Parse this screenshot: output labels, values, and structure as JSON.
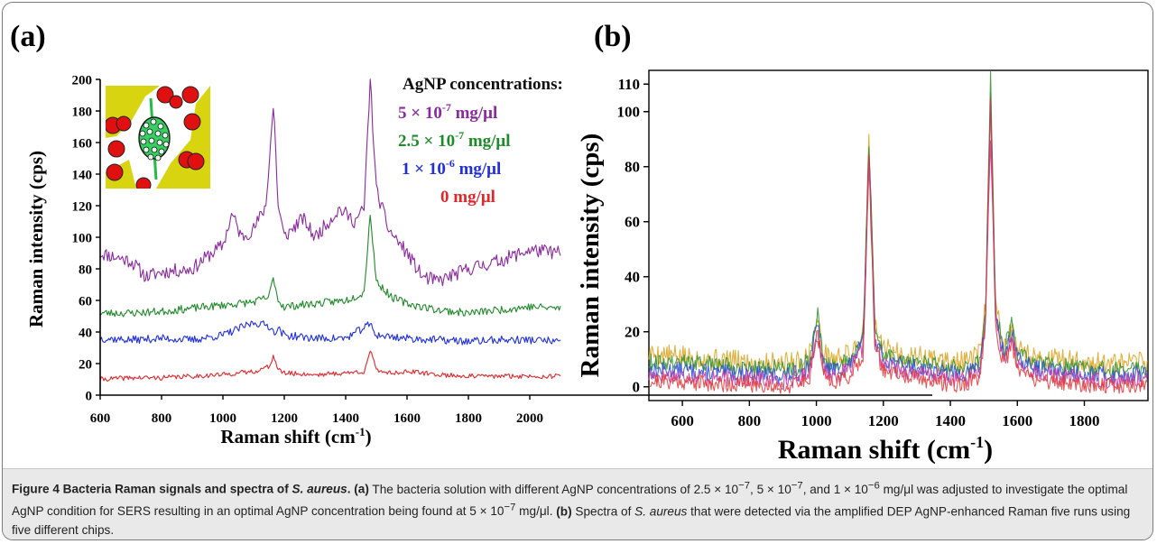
{
  "figure": {
    "panel_a_label": "(a)",
    "panel_b_label": "(b)"
  },
  "caption": {
    "fig_num": "Figure 4",
    "title_pre": "Bacteria Raman signals and spectra of ",
    "title_species": "S. aureus",
    "title_post": ".",
    "a_tag": "(a)",
    "a_text_1": " The bacteria solution with different AgNP concentrations of 2.5 × 10",
    "a_sup_1": "−7",
    "a_text_2": ", 5 × 10",
    "a_sup_2": "−7",
    "a_text_3": ", and 1 × 10",
    "a_sup_3": "−6",
    "a_text_4": " mg/μl was adjusted to investigate the optimal AgNP condition for SERS resulting in an optimal AgNP concentration being found at 5 × 10",
    "a_sup_4": "−7",
    "a_text_5": " mg/μl.",
    "b_tag": "(b)",
    "b_text_1": " Spectra of ",
    "b_species": "S. aureus",
    "b_text_2": " that were detected via the amplified DEP AgNP-enhanced Raman five runs using five different chips."
  },
  "chart_data": [
    {
      "type": "line",
      "panel": "a",
      "xlabel": "Raman shift (cm",
      "xlabel_sup": "-1",
      "xlabel_close": ")",
      "ylabel": "Raman intensity (cps)",
      "xlim": [
        600,
        2100
      ],
      "ylim": [
        0,
        200
      ],
      "xticks": [
        600,
        800,
        1000,
        1200,
        1400,
        1600,
        1800,
        2000
      ],
      "yticks": [
        0,
        20,
        40,
        60,
        80,
        100,
        120,
        140,
        160,
        180,
        200
      ],
      "legend_placement": "top-right",
      "legend_title": "AgNP concentrations:",
      "legend": [
        {
          "base": "5 × 10",
          "exp": "-7",
          "unit": " mg/μl",
          "color": "#8b2a9e"
        },
        {
          "base": "2.5 × 10",
          "exp": "-7",
          "unit": " mg/μl",
          "color": "#1f8a2a"
        },
        {
          "base": "1 × 10",
          "exp": "-6",
          "unit": " mg/μl",
          "color": "#1f2fe0"
        },
        {
          "base": "0",
          "exp": "",
          "unit": " mg/μl",
          "color": "#e2262a"
        }
      ],
      "series": [
        {
          "name": "5 × 10-7 mg/μl",
          "color": "#8b2a9e",
          "noise": 4.5,
          "seed": 11,
          "x": [
            600,
            700,
            750,
            800,
            900,
            950,
            1000,
            1030,
            1060,
            1100,
            1140,
            1165,
            1180,
            1200,
            1260,
            1300,
            1380,
            1430,
            1460,
            1480,
            1500,
            1540,
            1600,
            1650,
            1700,
            1800,
            1900,
            2000,
            2100
          ],
          "y": [
            90,
            85,
            75,
            78,
            80,
            88,
            95,
            115,
            100,
            105,
            120,
            185,
            120,
            100,
            112,
            100,
            118,
            110,
            118,
            200,
            130,
            105,
            90,
            75,
            72,
            80,
            85,
            92,
            90
          ]
        },
        {
          "name": "2.5 × 10-7 mg/μl",
          "color": "#1f8a2a",
          "noise": 2.5,
          "seed": 23,
          "x": [
            600,
            700,
            800,
            900,
            1000,
            1100,
            1150,
            1165,
            1180,
            1200,
            1300,
            1400,
            1460,
            1480,
            1500,
            1550,
            1600,
            1700,
            1800,
            1900,
            2000,
            2100
          ],
          "y": [
            52,
            52,
            53,
            55,
            57,
            59,
            62,
            75,
            60,
            56,
            58,
            60,
            65,
            115,
            72,
            62,
            58,
            54,
            52,
            54,
            56,
            55
          ]
        },
        {
          "name": "1 × 10-6 mg/μl",
          "color": "#1f2fe0",
          "noise": 2.5,
          "seed": 37,
          "x": [
            600,
            700,
            800,
            900,
            1000,
            1050,
            1100,
            1150,
            1165,
            1180,
            1200,
            1300,
            1400,
            1480,
            1500,
            1600,
            1700,
            1800,
            1900,
            2000,
            2100
          ],
          "y": [
            36,
            35,
            36,
            35,
            38,
            42,
            46,
            44,
            40,
            42,
            38,
            36,
            36,
            45,
            38,
            36,
            35,
            34,
            35,
            35,
            34
          ]
        },
        {
          "name": "0 mg/μl",
          "color": "#e2262a",
          "noise": 1.5,
          "seed": 41,
          "x": [
            600,
            700,
            800,
            900,
            1000,
            1100,
            1150,
            1165,
            1180,
            1200,
            1300,
            1400,
            1460,
            1480,
            1500,
            1550,
            1600,
            1700,
            1800,
            1900,
            2000,
            2100
          ],
          "y": [
            10,
            11,
            11,
            12,
            13,
            15,
            18,
            25,
            16,
            14,
            13,
            14,
            15,
            28,
            16,
            14,
            15,
            13,
            12,
            12,
            12,
            12
          ]
        }
      ],
      "inset": {
        "colors": {
          "background": "#d8d410",
          "particle": "#e01010",
          "bacterium": "#34d060",
          "rod": "#22bb44"
        }
      }
    },
    {
      "type": "line",
      "panel": "b",
      "xlabel": "Raman shift (cm",
      "xlabel_sup": "-1",
      "xlabel_close": ")",
      "ylabel": "Raman intensity (cps)",
      "xlim": [
        500,
        1990
      ],
      "ylim": [
        -5,
        115
      ],
      "xticks": [
        600,
        800,
        1000,
        1200,
        1400,
        1600,
        1800
      ],
      "yticks": [
        0,
        20,
        40,
        60,
        80,
        100,
        110
      ],
      "series": [
        {
          "color": "#d9a21c",
          "noise": 4,
          "seed": 5,
          "x": [
            500,
            600,
            700,
            800,
            900,
            950,
            980,
            1003,
            1020,
            1050,
            1100,
            1140,
            1157,
            1175,
            1200,
            1250,
            1300,
            1350,
            1400,
            1450,
            1490,
            1505,
            1520,
            1535,
            1560,
            1585,
            1600,
            1650,
            1700,
            1800,
            1900,
            1990
          ],
          "y": [
            12,
            11,
            10,
            9,
            9,
            9,
            12,
            25,
            12,
            10,
            12,
            20,
            89,
            22,
            14,
            12,
            11,
            10,
            9,
            9,
            12,
            30,
            108,
            30,
            15,
            22,
            14,
            11,
            10,
            9,
            8,
            9
          ]
        },
        {
          "color": "#2e8f2e",
          "noise": 3,
          "seed": 9,
          "x": [
            500,
            600,
            700,
            800,
            900,
            950,
            980,
            1003,
            1020,
            1050,
            1100,
            1140,
            1157,
            1175,
            1200,
            1250,
            1300,
            1350,
            1400,
            1450,
            1490,
            1505,
            1520,
            1535,
            1560,
            1585,
            1600,
            1650,
            1700,
            1800,
            1900,
            1990
          ],
          "y": [
            9,
            9,
            8,
            7,
            7,
            7,
            10,
            27,
            10,
            8,
            10,
            18,
            90,
            20,
            12,
            10,
            9,
            8,
            7,
            7,
            10,
            28,
            112,
            28,
            13,
            24,
            12,
            9,
            8,
            7,
            6,
            7
          ]
        },
        {
          "color": "#2a4ad8",
          "noise": 3,
          "seed": 13,
          "x": [
            500,
            600,
            700,
            800,
            900,
            950,
            980,
            1003,
            1020,
            1050,
            1100,
            1140,
            1157,
            1175,
            1200,
            1250,
            1300,
            1350,
            1400,
            1450,
            1490,
            1505,
            1520,
            1535,
            1560,
            1585,
            1600,
            1650,
            1700,
            1800,
            1900,
            1990
          ],
          "y": [
            6,
            6,
            5,
            5,
            4,
            5,
            8,
            23,
            8,
            6,
            8,
            16,
            86,
            18,
            10,
            8,
            7,
            6,
            5,
            5,
            8,
            26,
            105,
            26,
            11,
            20,
            10,
            7,
            6,
            5,
            4,
            5
          ]
        },
        {
          "color": "#c2399e",
          "noise": 3,
          "seed": 17,
          "x": [
            500,
            600,
            700,
            800,
            900,
            950,
            980,
            1003,
            1020,
            1050,
            1100,
            1140,
            1157,
            1175,
            1200,
            1250,
            1300,
            1350,
            1400,
            1450,
            1490,
            1505,
            1520,
            1535,
            1560,
            1585,
            1600,
            1650,
            1700,
            1800,
            1900,
            1990
          ],
          "y": [
            4,
            4,
            3,
            3,
            2,
            3,
            6,
            20,
            6,
            4,
            6,
            14,
            80,
            16,
            8,
            6,
            5,
            4,
            3,
            3,
            6,
            24,
            92,
            24,
            9,
            18,
            8,
            5,
            4,
            3,
            2,
            3
          ]
        },
        {
          "color": "#e03838",
          "noise": 3,
          "seed": 21,
          "x": [
            500,
            600,
            700,
            800,
            900,
            950,
            980,
            1003,
            1020,
            1050,
            1100,
            1140,
            1157,
            1175,
            1200,
            1250,
            1300,
            1350,
            1400,
            1450,
            1490,
            1505,
            1520,
            1535,
            1560,
            1585,
            1600,
            1650,
            1700,
            1800,
            1900,
            1990
          ],
          "y": [
            2,
            2,
            1,
            1,
            0,
            1,
            4,
            21,
            4,
            2,
            4,
            12,
            84,
            14,
            6,
            4,
            3,
            2,
            1,
            1,
            4,
            22,
            104,
            22,
            7,
            16,
            6,
            3,
            2,
            1,
            0,
            1
          ]
        }
      ]
    }
  ]
}
